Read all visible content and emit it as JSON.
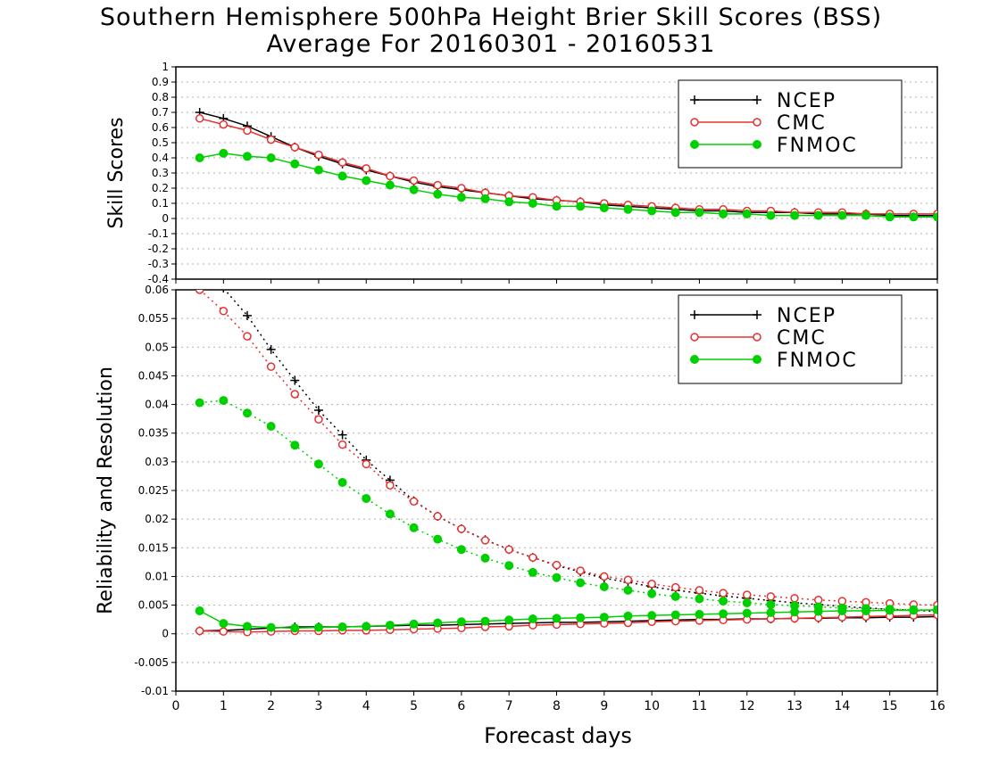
{
  "title": "Southern Hemisphere 500hPa Height Brier Skill Scores (BSS)",
  "subtitle": "Average For 20160301 - 20160531",
  "xlabel": "Forecast days",
  "colors": {
    "NCEP": "#000000",
    "CMC": "#e53030",
    "FNMOC": "#00d000",
    "grid": "#b0b0b0"
  },
  "chart_data": [
    {
      "type": "line",
      "panel": "top",
      "ylabel": "Skill Scores",
      "xlim": [
        0,
        16
      ],
      "ylim": [
        -0.4,
        1
      ],
      "xticks": [
        "0",
        "1",
        "2",
        "3",
        "4",
        "5",
        "6",
        "7",
        "8",
        "9",
        "10",
        "11",
        "12",
        "13",
        "14",
        "15",
        "16"
      ],
      "yticks": [
        "-0.4",
        "-0.3",
        "-0.2",
        "-0.1",
        "0",
        "0.1",
        "0.2",
        "0.3",
        "0.4",
        "0.5",
        "0.6",
        "0.7",
        "0.8",
        "0.9",
        "1"
      ],
      "grid": true,
      "legend": "top-right",
      "x": [
        0.5,
        1,
        1.5,
        2,
        2.5,
        3,
        3.5,
        4,
        4.5,
        5,
        5.5,
        6,
        6.5,
        7,
        7.5,
        8,
        8.5,
        9,
        9.5,
        10,
        10.5,
        11,
        11.5,
        12,
        12.5,
        13,
        13.5,
        14,
        14.5,
        15,
        15.5,
        16
      ],
      "series": [
        {
          "name": "NCEP",
          "marker": "plus",
          "line": "solid",
          "values": [
            0.7,
            0.66,
            0.61,
            0.54,
            0.47,
            0.41,
            0.36,
            0.32,
            0.28,
            0.24,
            0.21,
            0.19,
            0.17,
            0.15,
            0.13,
            0.12,
            0.11,
            0.09,
            0.08,
            0.07,
            0.06,
            0.05,
            0.05,
            0.04,
            0.04,
            0.04,
            0.03,
            0.03,
            0.03,
            0.02,
            0.02,
            0.02
          ]
        },
        {
          "name": "CMC",
          "marker": "open-circle",
          "line": "solid",
          "values": [
            0.66,
            0.62,
            0.58,
            0.52,
            0.47,
            0.42,
            0.37,
            0.33,
            0.28,
            0.25,
            0.22,
            0.2,
            0.17,
            0.15,
            0.14,
            0.12,
            0.11,
            0.1,
            0.09,
            0.08,
            0.07,
            0.06,
            0.06,
            0.05,
            0.05,
            0.04,
            0.04,
            0.04,
            0.03,
            0.03,
            0.03,
            0.03
          ]
        },
        {
          "name": "FNMOC",
          "marker": "filled-circle",
          "line": "solid",
          "values": [
            0.4,
            0.43,
            0.41,
            0.4,
            0.36,
            0.32,
            0.28,
            0.25,
            0.22,
            0.19,
            0.16,
            0.14,
            0.13,
            0.11,
            0.1,
            0.08,
            0.08,
            0.07,
            0.06,
            0.05,
            0.04,
            0.04,
            0.03,
            0.03,
            0.02,
            0.02,
            0.02,
            0.02,
            0.02,
            0.01,
            0.01,
            0.01
          ]
        }
      ]
    },
    {
      "type": "line",
      "panel": "bottom",
      "ylabel": "Reliability and Resolution",
      "xlim": [
        0,
        16
      ],
      "ylim": [
        -0.01,
        0.06
      ],
      "xticks": [
        "0",
        "1",
        "2",
        "3",
        "4",
        "5",
        "6",
        "7",
        "8",
        "9",
        "10",
        "11",
        "12",
        "13",
        "14",
        "15",
        "16"
      ],
      "yticks": [
        "-0.01",
        "-0.005",
        "0",
        "0.005",
        "0.01",
        "0.015",
        "0.02",
        "0.025",
        "0.03",
        "0.035",
        "0.04",
        "0.045",
        "0.05",
        "0.055",
        "0.06"
      ],
      "grid": true,
      "legend": "top-right",
      "x": [
        0.5,
        1,
        1.5,
        2,
        2.5,
        3,
        3.5,
        4,
        4.5,
        5,
        5.5,
        6,
        6.5,
        7,
        7.5,
        8,
        8.5,
        9,
        9.5,
        10,
        10.5,
        11,
        11.5,
        12,
        12.5,
        13,
        13.5,
        14,
        14.5,
        15,
        15.5,
        16
      ],
      "series": [
        {
          "name": "NCEP",
          "marker": "plus",
          "line": "dotted",
          "group": "resolution",
          "values": [
            0.064,
            0.0603,
            0.0555,
            0.0496,
            0.0442,
            0.039,
            0.0347,
            0.0303,
            0.0268,
            0.0232,
            0.0205,
            0.0183,
            0.0164,
            0.0147,
            0.0133,
            0.0119,
            0.0108,
            0.0097,
            0.009,
            0.0082,
            0.0076,
            0.0071,
            0.0066,
            0.0062,
            0.0058,
            0.0054,
            0.0051,
            0.0048,
            0.0045,
            0.0043,
            0.0041,
            0.0039
          ]
        },
        {
          "name": "CMC",
          "marker": "open-circle",
          "line": "dotted",
          "group": "resolution",
          "values": [
            0.06,
            0.0563,
            0.0519,
            0.0466,
            0.0418,
            0.0374,
            0.033,
            0.0296,
            0.0259,
            0.0231,
            0.0205,
            0.0183,
            0.0163,
            0.0147,
            0.0133,
            0.012,
            0.011,
            0.01,
            0.0094,
            0.0087,
            0.0081,
            0.0076,
            0.0071,
            0.0068,
            0.0065,
            0.0062,
            0.0059,
            0.0057,
            0.0055,
            0.0053,
            0.0051,
            0.005
          ]
        },
        {
          "name": "FNMOC",
          "marker": "filled-circle",
          "line": "dotted",
          "group": "resolution",
          "values": [
            0.0403,
            0.0407,
            0.0385,
            0.0362,
            0.0329,
            0.0296,
            0.0264,
            0.0236,
            0.0209,
            0.0185,
            0.0165,
            0.0147,
            0.0132,
            0.0119,
            0.0107,
            0.0098,
            0.0089,
            0.0082,
            0.0076,
            0.007,
            0.0065,
            0.0061,
            0.0057,
            0.0054,
            0.0051,
            0.0049,
            0.0047,
            0.0045,
            0.0044,
            0.0043,
            0.0042,
            0.0041
          ]
        },
        {
          "name": "NCEP",
          "marker": "plus",
          "line": "solid",
          "group": "reliability",
          "values": [
            0.0005,
            0.0006,
            0.0008,
            0.001,
            0.0012,
            0.0012,
            0.0012,
            0.0013,
            0.0014,
            0.0015,
            0.0015,
            0.0016,
            0.0017,
            0.0018,
            0.0019,
            0.002,
            0.002,
            0.0021,
            0.0022,
            0.0023,
            0.0024,
            0.0025,
            0.0025,
            0.0026,
            0.0026,
            0.0027,
            0.0027,
            0.0028,
            0.0028,
            0.0029,
            0.0029,
            0.003
          ]
        },
        {
          "name": "CMC",
          "marker": "open-circle",
          "line": "solid",
          "group": "reliability",
          "values": [
            0.0005,
            0.0004,
            0.0003,
            0.0004,
            0.0005,
            0.0005,
            0.0006,
            0.0006,
            0.0007,
            0.0008,
            0.0009,
            0.001,
            0.0012,
            0.0013,
            0.0015,
            0.0016,
            0.0017,
            0.0018,
            0.0019,
            0.0021,
            0.0022,
            0.0023,
            0.0024,
            0.0025,
            0.0026,
            0.0027,
            0.0028,
            0.0029,
            0.003,
            0.0031,
            0.0032,
            0.0033
          ]
        },
        {
          "name": "FNMOC",
          "marker": "filled-circle",
          "line": "solid",
          "group": "reliability",
          "values": [
            0.004,
            0.0018,
            0.0013,
            0.0011,
            0.001,
            0.0011,
            0.0012,
            0.0013,
            0.0015,
            0.0017,
            0.0019,
            0.0021,
            0.0022,
            0.0024,
            0.0026,
            0.0027,
            0.0028,
            0.0029,
            0.0031,
            0.0032,
            0.0033,
            0.0034,
            0.0035,
            0.0036,
            0.0037,
            0.0038,
            0.0039,
            0.004,
            0.004,
            0.0041,
            0.0041,
            0.0042
          ]
        }
      ]
    }
  ]
}
